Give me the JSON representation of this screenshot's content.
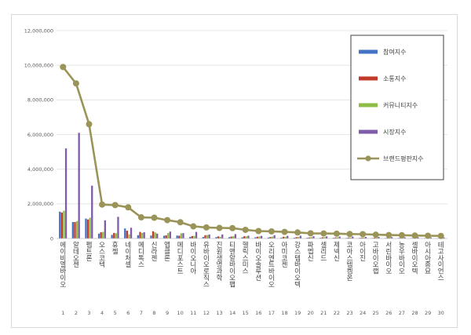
{
  "chart_data": {
    "type": "bar",
    "ylim": [
      0,
      12000000
    ],
    "yticks": [
      "0",
      "2,000,000",
      "4,000,000",
      "6,000,000",
      "8,000,000",
      "10,000,000",
      "12,000,000"
    ],
    "ytick_values": [
      0,
      2000000,
      4000000,
      6000000,
      8000000,
      10000000,
      12000000
    ],
    "x": [
      "1",
      "2",
      "3",
      "4",
      "5",
      "6",
      "7",
      "8",
      "9",
      "10",
      "11",
      "12",
      "13",
      "14",
      "15",
      "16",
      "17",
      "18",
      "19",
      "20",
      "21",
      "22",
      "23",
      "24",
      "25",
      "26",
      "27",
      "28",
      "29",
      "30"
    ],
    "categories": [
      "에이비엘바이오",
      "알테오젠",
      "펩트론",
      "오스코텍",
      "휴젤",
      "네이처셀",
      "메디톡스",
      "신라젠",
      "앱클론",
      "메디포스트",
      "바이오니아",
      "유바이오로직스",
      "진원생명과학",
      "티앤알바이오팹",
      "헬릭스미스",
      "바이오솔루션",
      "오리엔트바이오",
      "아미코젠",
      "강스템바이오텍",
      "파멥신",
      "셀리드",
      "제넥신",
      "코아스템켐온",
      "아이진",
      "고바이오랩",
      "서린바이오",
      "농우바이오",
      "셀바이오텍",
      "아시아종묘",
      "테고사이언스"
    ],
    "series": [
      {
        "name": "참여지수",
        "color": "#4472c4",
        "values": [
          1550000,
          950000,
          1150000,
          280000,
          210000,
          580000,
          190000,
          170000,
          160000,
          170000,
          95000,
          85000,
          80000,
          80000,
          70000,
          70000,
          55000,
          50000,
          45000,
          45000,
          40000,
          40000,
          35000,
          35000,
          30000,
          30000,
          30000,
          25000,
          25000,
          20000
        ]
      },
      {
        "name": "소통지수",
        "color": "#c0392b",
        "values": [
          1500000,
          950000,
          1100000,
          360000,
          320000,
          450000,
          380000,
          420000,
          180000,
          160000,
          140000,
          190000,
          120000,
          110000,
          130000,
          100000,
          90000,
          100000,
          80000,
          60000,
          70000,
          60000,
          55000,
          50000,
          45000,
          45000,
          40000,
          40000,
          35000,
          30000
        ]
      },
      {
        "name": "커뮤니티지수",
        "color": "#8fbc45",
        "values": [
          1600000,
          1000000,
          1200000,
          380000,
          300000,
          240000,
          320000,
          350000,
          320000,
          300000,
          150000,
          200000,
          100000,
          130000,
          120000,
          120000,
          110000,
          100000,
          90000,
          80000,
          80000,
          70000,
          60000,
          60000,
          60000,
          50000,
          50000,
          40000,
          40000,
          30000
        ]
      },
      {
        "name": "시장지수",
        "color": "#7e5ca8",
        "values": [
          5200000,
          6100000,
          3050000,
          1050000,
          1250000,
          620000,
          360000,
          280000,
          400000,
          310000,
          380000,
          230000,
          230000,
          250000,
          160000,
          150000,
          190000,
          150000,
          160000,
          130000,
          120000,
          110000,
          110000,
          90000,
          90000,
          80000,
          70000,
          80000,
          60000,
          60000
        ]
      },
      {
        "name": "브랜드평판지수",
        "color": "#9b9458",
        "kind": "line",
        "values": [
          9900000,
          8950000,
          6600000,
          1960000,
          1930000,
          1800000,
          1220000,
          1200000,
          1060000,
          940000,
          700000,
          640000,
          610000,
          600000,
          500000,
          430000,
          410000,
          380000,
          350000,
          300000,
          290000,
          280000,
          260000,
          250000,
          220000,
          200000,
          190000,
          170000,
          160000,
          150000
        ]
      }
    ]
  }
}
